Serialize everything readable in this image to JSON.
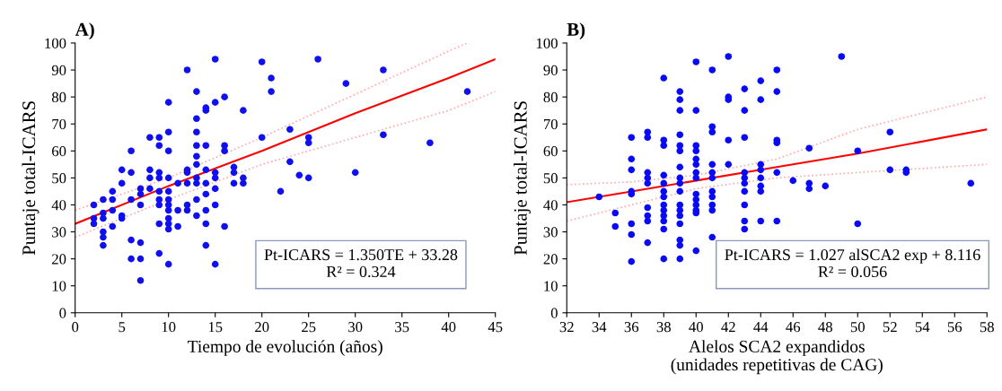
{
  "chart_data": [
    {
      "type": "scatter",
      "title": "A)",
      "xlabel": "Tiempo de evolución (años)",
      "ylabel": "Puntaje total-ICARS",
      "xlim": [
        0,
        45
      ],
      "xticks": [
        0,
        5,
        10,
        15,
        20,
        25,
        30,
        35,
        40,
        45
      ],
      "ylim": [
        0,
        100
      ],
      "yticks": [
        0,
        10,
        20,
        30,
        40,
        50,
        60,
        70,
        80,
        90,
        100
      ],
      "marker": "circle",
      "grid": false,
      "annotations": [
        "Pt-ICARS = 1.350TE + 33.28\nR² = 0.324"
      ],
      "series": [
        {
          "color": "#1010ee",
          "x": [
            2,
            2,
            2,
            3,
            3,
            3,
            3,
            3,
            3,
            4,
            4,
            4,
            4,
            5,
            5,
            5,
            5,
            6,
            6,
            6,
            6,
            6,
            7,
            7,
            7,
            7,
            7,
            7,
            8,
            8,
            8,
            8,
            9,
            9,
            9,
            9,
            9,
            9,
            9,
            9,
            9,
            10,
            10,
            10,
            10,
            10,
            10,
            10,
            10,
            10,
            10,
            10,
            10,
            11,
            11,
            11,
            12,
            12,
            12,
            12,
            12,
            12,
            13,
            13,
            13,
            13,
            13,
            13,
            13,
            13,
            13,
            13,
            14,
            14,
            14,
            14,
            14,
            14,
            14,
            14,
            14,
            15,
            15,
            15,
            15,
            15,
            15,
            15,
            16,
            16,
            16,
            16,
            17,
            17,
            17,
            18,
            18,
            18,
            20,
            20,
            21,
            21,
            22,
            23,
            23,
            24,
            25,
            25,
            25,
            26,
            29,
            30,
            33,
            33,
            38,
            42
          ],
          "values": [
            33,
            35,
            40,
            30,
            28,
            25,
            35,
            37,
            42,
            45,
            42,
            38,
            32,
            35,
            36,
            53,
            48,
            60,
            52,
            42,
            27,
            20,
            26,
            20,
            12,
            40,
            46,
            44,
            65,
            53,
            50,
            46,
            65,
            62,
            52,
            50,
            45,
            42,
            40,
            33,
            22,
            67,
            60,
            50,
            45,
            42,
            40,
            38,
            35,
            33,
            31,
            18,
            78,
            48,
            38,
            32,
            53,
            52,
            48,
            40,
            38,
            90,
            82,
            72,
            67,
            62,
            58,
            55,
            50,
            48,
            42,
            36,
            75,
            76,
            62,
            53,
            48,
            44,
            38,
            33,
            25,
            94,
            78,
            52,
            50,
            46,
            40,
            18,
            80,
            62,
            60,
            32,
            52,
            48,
            54,
            75,
            48,
            50,
            93,
            65,
            87,
            82,
            45,
            68,
            56,
            51,
            65,
            63,
            50,
            94,
            85,
            52,
            90,
            66,
            63,
            82
          ]
        },
        {
          "type": "line",
          "marker": "none",
          "color": "#ff0000",
          "line_style": "solid",
          "x": [
            0,
            10,
            20,
            30,
            40,
            45
          ],
          "values": [
            33,
            47,
            60,
            74,
            87,
            94
          ]
        },
        {
          "type": "line",
          "marker": "none",
          "color": "#ffaaaa",
          "line_style": "dotted",
          "x": [
            0,
            10,
            20,
            30,
            40,
            42
          ],
          "values": [
            38,
            50,
            65,
            81,
            97,
            100
          ]
        },
        {
          "type": "line",
          "marker": "none",
          "color": "#ffaaaa",
          "line_style": "dotted",
          "x": [
            0,
            10,
            20,
            30,
            40,
            45
          ],
          "values": [
            28,
            42,
            55,
            65,
            75,
            82
          ]
        }
      ]
    },
    {
      "type": "scatter",
      "title": "B)",
      "xlabel": "Alelos SCA2 expandidos\n(unidades repetitivas de CAG)",
      "ylabel": "Puntaje total-ICARS",
      "xlim": [
        32,
        58
      ],
      "xticks": [
        32,
        34,
        36,
        38,
        40,
        42,
        44,
        46,
        48,
        50,
        52,
        54,
        56,
        58
      ],
      "ylim": [
        0,
        100
      ],
      "yticks": [
        0,
        10,
        20,
        30,
        40,
        50,
        60,
        70,
        80,
        90,
        100
      ],
      "marker": "circle",
      "grid": false,
      "annotations": [
        "Pt-ICARS = 1.027 alSCA2 exp + 8.116\nR² = 0.056"
      ],
      "series": [
        {
          "color": "#0a0af0",
          "x": [
            34,
            35,
            35,
            36,
            36,
            36,
            36,
            36,
            36,
            36,
            36,
            37,
            37,
            37,
            37,
            37,
            37,
            37,
            37,
            37,
            38,
            38,
            38,
            38,
            38,
            38,
            38,
            38,
            38,
            38,
            38,
            38,
            38,
            39,
            39,
            39,
            39,
            39,
            39,
            39,
            39,
            39,
            39,
            39,
            39,
            39,
            39,
            39,
            39,
            39,
            40,
            40,
            40,
            40,
            40,
            40,
            40,
            40,
            40,
            40,
            40,
            40,
            40,
            40,
            41,
            41,
            41,
            41,
            41,
            41,
            41,
            41,
            41,
            41,
            41,
            42,
            42,
            42,
            42,
            42,
            43,
            43,
            43,
            43,
            43,
            43,
            43,
            43,
            43,
            43,
            44,
            44,
            44,
            44,
            44,
            44,
            44,
            44,
            45,
            45,
            45,
            45,
            45,
            45,
            46,
            47,
            47,
            47,
            48,
            49,
            50,
            50,
            52,
            52,
            53,
            53,
            57
          ],
          "values": [
            43,
            37,
            32,
            65,
            57,
            53,
            45,
            44,
            33,
            29,
            19,
            67,
            65,
            52,
            50,
            48,
            39,
            36,
            34,
            26,
            87,
            64,
            62,
            51,
            48,
            45,
            43,
            40,
            38,
            36,
            34,
            31,
            20,
            82,
            79,
            75,
            66,
            62,
            60,
            54,
            50,
            48,
            45,
            40,
            38,
            36,
            33,
            27,
            25,
            20,
            93,
            75,
            62,
            60,
            57,
            55,
            52,
            50,
            44,
            42,
            40,
            38,
            37,
            23,
            90,
            69,
            67,
            55,
            52,
            50,
            45,
            43,
            40,
            38,
            28,
            95,
            80,
            79,
            64,
            55,
            83,
            75,
            65,
            52,
            50,
            48,
            45,
            40,
            34,
            31,
            86,
            79,
            55,
            53,
            50,
            47,
            45,
            34,
            90,
            82,
            64,
            63,
            52,
            34,
            49,
            61,
            48,
            46,
            47,
            95,
            60,
            33,
            67,
            53,
            53,
            52,
            48
          ]
        },
        {
          "type": "line",
          "marker": "none",
          "color": "#ff0000",
          "line_style": "solid",
          "x": [
            32,
            36,
            40,
            45,
            50,
            58
          ],
          "values": [
            41,
            45,
            49,
            54,
            59,
            68
          ]
        },
        {
          "type": "line",
          "marker": "none",
          "color": "#ffaaaa",
          "line_style": "dotted",
          "x": [
            32,
            36,
            40,
            45,
            50,
            58
          ],
          "values": [
            47.5,
            48.5,
            51,
            57,
            68,
            80
          ]
        },
        {
          "type": "line",
          "marker": "none",
          "color": "#ffaaaa",
          "line_style": "dotted",
          "x": [
            32,
            36,
            40,
            45,
            50,
            58
          ],
          "values": [
            34,
            40,
            46,
            50,
            52,
            55
          ]
        }
      ]
    }
  ]
}
